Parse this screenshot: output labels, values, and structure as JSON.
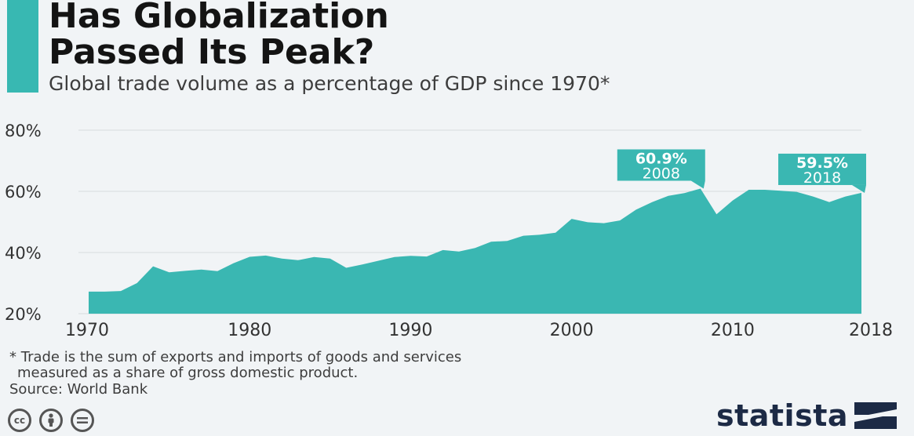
{
  "title_line1": "Has Globalization",
  "title_line2": "Passed Its Peak?",
  "subtitle": "Global trade volume as a percentage of GDP since 1970*",
  "footnote_line1": "* Trade is the sum of exports and imports of goods and services",
  "footnote_line2": "measured as a share of gross domestic product.",
  "source": "Source: World Bank",
  "brand": "statista",
  "license_icons": [
    "creative-commons-icon",
    "attribution-icon",
    "no-derivatives-icon"
  ],
  "chart_data": {
    "type": "area",
    "x": [
      1970,
      1971,
      1972,
      1973,
      1974,
      1975,
      1976,
      1977,
      1978,
      1979,
      1980,
      1981,
      1982,
      1983,
      1984,
      1985,
      1986,
      1987,
      1988,
      1989,
      1990,
      1991,
      1992,
      1993,
      1994,
      1995,
      1996,
      1997,
      1998,
      1999,
      2000,
      2001,
      2002,
      2003,
      2004,
      2005,
      2006,
      2007,
      2008,
      2009,
      2010,
      2011,
      2012,
      2013,
      2014,
      2015,
      2016,
      2017,
      2018
    ],
    "series": [
      {
        "values": [
          27.2,
          27.2,
          27.4,
          30.0,
          35.5,
          33.5,
          34.0,
          34.4,
          33.9,
          36.5,
          38.6,
          39.0,
          38.0,
          37.5,
          38.5,
          38.0,
          35.0,
          36.1,
          37.3,
          38.5,
          38.9,
          38.7,
          40.8,
          40.3,
          41.5,
          43.5,
          43.8,
          45.5,
          45.8,
          46.5,
          51.0,
          49.9,
          49.6,
          50.5,
          54.0,
          56.5,
          58.5,
          59.4,
          60.9,
          52.5,
          57.0,
          60.5,
          60.5,
          60.2,
          59.8,
          58.3,
          56.5,
          58.3,
          59.5
        ]
      }
    ],
    "ylim": [
      20,
      80
    ],
    "y_ticks": [
      "80%",
      "60%",
      "40%",
      "20%"
    ],
    "x_ticks": [
      "1970",
      "1980",
      "1990",
      "2000",
      "2010",
      "2018"
    ],
    "grid": true,
    "color": "#3ab7b2",
    "annotations": [
      {
        "year": 2008,
        "value_label": "60.9%",
        "year_label": "2008"
      },
      {
        "year": 2018,
        "value_label": "59.5%",
        "year_label": "2018"
      }
    ]
  }
}
